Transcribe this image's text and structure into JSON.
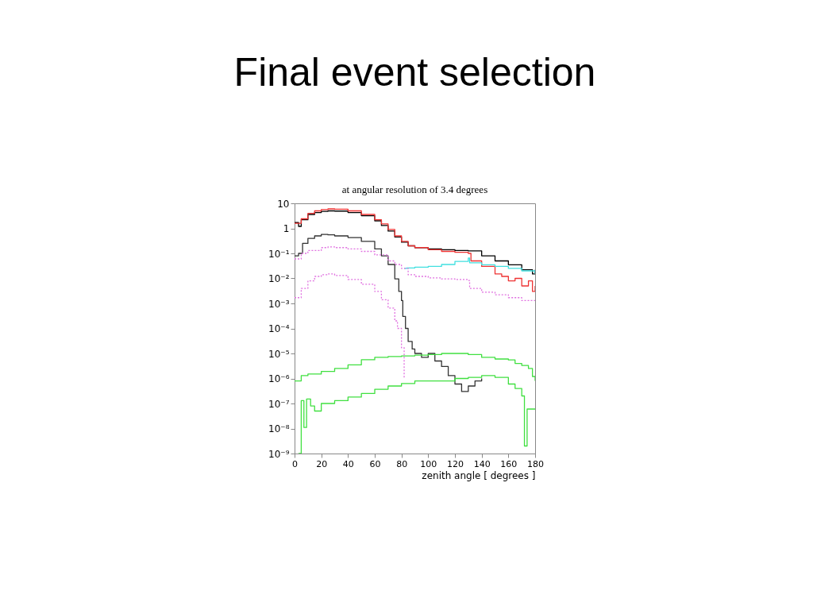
{
  "chart_data": {
    "type": "step",
    "title": "Final event selection",
    "subtitle": "at angular resolution of 3.4 degrees",
    "xlabel": "zenith angle [ degrees ]",
    "xlim": [
      0,
      180
    ],
    "xticks": [
      0,
      20,
      40,
      60,
      80,
      100,
      120,
      140,
      160,
      180
    ],
    "ylim": [
      1e-09,
      10
    ],
    "log": true,
    "yticks": [
      10,
      1,
      {
        "value": 0.1,
        "label": "10⁻¹"
      },
      {
        "value": 0.01,
        "label": "10⁻²"
      },
      {
        "value": 0.001,
        "label": "10⁻³"
      },
      {
        "value": 0.0001,
        "label": "10⁻⁴"
      },
      {
        "value": 1e-05,
        "label": "10⁻⁵"
      },
      {
        "value": 1e-06,
        "label": "10⁻⁶"
      },
      {
        "value": 1e-07,
        "label": "10⁻⁷"
      },
      {
        "value": 1e-08,
        "label": "10⁻⁸"
      },
      {
        "value": 1e-09,
        "label": "10⁻⁹"
      }
    ],
    "grid": false,
    "legend": false,
    "marker": "none",
    "series": [
      {
        "color": "#000000",
        "line_style": "solid",
        "x": [
          0,
          3,
          5,
          10,
          15,
          20,
          25,
          30,
          40,
          50,
          60,
          65,
          70,
          75,
          80,
          85,
          90,
          100,
          110,
          120,
          130,
          140,
          150,
          160,
          170,
          178,
          180
        ],
        "values": [
          1.7,
          1.2,
          2.2,
          3.6,
          4.3,
          4.8,
          5.0,
          4.9,
          4.3,
          3.2,
          2.0,
          1.3,
          0.78,
          0.45,
          0.28,
          0.2,
          0.17,
          0.15,
          0.14,
          0.13,
          0.125,
          0.08,
          0.05,
          0.035,
          0.022,
          0.015,
          0.022
        ]
      },
      {
        "color": "#ee3333",
        "line_style": "solid",
        "x": [
          0,
          5,
          10,
          15,
          20,
          25,
          30,
          40,
          50,
          60,
          65,
          70,
          75,
          80,
          85,
          90,
          100,
          110,
          120,
          130,
          132,
          140,
          145,
          150,
          155,
          160,
          165,
          170,
          175,
          178,
          180
        ],
        "values": [
          1.6,
          2.4,
          4.0,
          5.0,
          5.6,
          6.0,
          5.8,
          5.0,
          3.6,
          2.2,
          1.5,
          0.9,
          0.5,
          0.3,
          0.2,
          0.17,
          0.14,
          0.12,
          0.11,
          0.1,
          0.05,
          0.03,
          0.03,
          0.015,
          0.012,
          0.008,
          0.01,
          0.005,
          0.008,
          0.003,
          0.005
        ]
      },
      {
        "color": "#333333",
        "line_style": "solid",
        "x": [
          0,
          3,
          6,
          10,
          15,
          20,
          25,
          30,
          40,
          50,
          60,
          65,
          70,
          75,
          78,
          80,
          81,
          83,
          85,
          88,
          90,
          95,
          100,
          105,
          110,
          115,
          120,
          125,
          130,
          135,
          140
        ],
        "values": [
          0.08,
          0.1,
          0.25,
          0.4,
          0.5,
          0.57,
          0.55,
          0.5,
          0.43,
          0.3,
          0.15,
          0.08,
          0.036,
          0.0096,
          0.003,
          0.0013,
          0.0003,
          0.0001,
          3e-05,
          1.5e-05,
          1e-05,
          7e-06,
          1e-05,
          5e-06,
          3e-06,
          1.3e-06,
          6e-07,
          3e-07,
          5e-07,
          8e-07,
          1e-06
        ]
      },
      {
        "color": "#40e0e0",
        "line_style": "solid",
        "x": [
          82,
          84,
          90,
          100,
          110,
          120,
          130,
          131,
          140,
          150,
          160,
          170,
          180
        ],
        "values": [
          0.025,
          0.026,
          0.028,
          0.03,
          0.036,
          0.048,
          0.065,
          0.042,
          0.035,
          0.03,
          0.025,
          0.02,
          0.015
        ]
      },
      {
        "color": "#e070e0",
        "line_style": "dotted",
        "x": [
          0,
          5,
          10,
          20,
          25,
          30,
          40,
          50,
          60,
          70,
          75,
          80,
          85,
          90,
          100,
          110,
          120,
          130,
          131,
          140,
          150,
          160,
          170,
          180
        ],
        "values": [
          0.06,
          0.1,
          0.13,
          0.17,
          0.18,
          0.17,
          0.15,
          0.12,
          0.087,
          0.05,
          0.036,
          0.025,
          0.014,
          0.012,
          0.0105,
          0.0095,
          0.009,
          0.0083,
          0.004,
          0.0028,
          0.0022,
          0.0017,
          0.0013,
          0.0011
        ]
      },
      {
        "color": "#e070e0",
        "line_style": "dotted",
        "x": [
          0,
          5,
          10,
          15,
          20,
          25,
          30,
          40,
          50,
          60,
          65,
          70,
          75,
          77,
          80,
          82
        ],
        "values": [
          0.0017,
          0.004,
          0.008,
          0.012,
          0.014,
          0.015,
          0.013,
          0.009,
          0.0058,
          0.003,
          0.0014,
          0.00065,
          0.0002,
          0.0001,
          1.7e-05,
          1e-06
        ]
      },
      {
        "color": "#40e040",
        "line_style": "solid",
        "x": [
          0,
          5,
          10,
          20,
          30,
          40,
          50,
          60,
          70,
          80,
          90,
          100,
          110,
          120,
          130,
          140,
          150,
          160,
          165,
          170,
          175,
          178,
          180
        ],
        "values": [
          8e-07,
          1.3e-06,
          1.5e-06,
          1.9e-06,
          2.5e-06,
          3.5e-06,
          5.6e-06,
          7e-06,
          7.5e-06,
          8e-06,
          8.5e-06,
          9e-06,
          1e-05,
          1e-05,
          9e-06,
          7e-06,
          6e-06,
          5.5e-06,
          4e-06,
          3.3e-06,
          2.5e-06,
          1.2e-06,
          8e-07
        ]
      },
      {
        "color": "#40e040",
        "line_style": "solid",
        "x": [
          3,
          5,
          7,
          9,
          12,
          15,
          20,
          30,
          40,
          50,
          60,
          70,
          80,
          90,
          100,
          110,
          120,
          130,
          140,
          150,
          160,
          165,
          170,
          172,
          174,
          176,
          180
        ],
        "values": [
          1e-09,
          1.3e-07,
          1.1e-08,
          1.5e-07,
          8e-08,
          5e-08,
          1e-07,
          1.3e-07,
          1.8e-07,
          2.5e-07,
          3.7e-07,
          5e-07,
          6.3e-07,
          8e-07,
          8e-07,
          8e-07,
          1e-06,
          1.1e-06,
          1.3e-06,
          1.1e-06,
          6e-07,
          4e-07,
          2e-07,
          2e-09,
          6e-08,
          6e-08,
          6e-08
        ]
      }
    ]
  }
}
